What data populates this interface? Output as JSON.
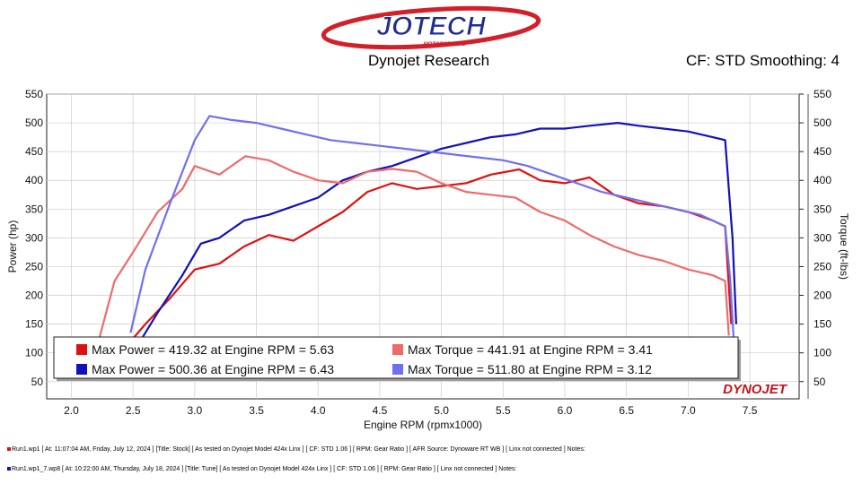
{
  "header": {
    "brand": "JOTECH",
    "brand_sub": "MOTORSPORTS",
    "center_title": "Dynojet Research",
    "right_title": "CF: STD Smoothing: 4",
    "watermark": "DYNOJET"
  },
  "chart_data": {
    "type": "line",
    "xlabel": "Engine RPM (rpmx1000)",
    "ylabel_left": "Power (hp)",
    "ylabel_right": "Torque (ft-lbs)",
    "xlim": [
      1.8,
      7.9
    ],
    "ylim": [
      20,
      550
    ],
    "x_ticks": [
      "2.0",
      "2.5",
      "3.0",
      "3.5",
      "4.0",
      "4.5",
      "5.0",
      "5.5",
      "6.0",
      "6.5",
      "7.0",
      "7.5"
    ],
    "y_ticks": [
      "50",
      "100",
      "150",
      "200",
      "250",
      "300",
      "350",
      "400",
      "450",
      "500",
      "550"
    ],
    "grid": true,
    "legend_position": "bottom-left",
    "series": [
      {
        "name": "Max Power = 419.32 at Engine RPM = 5.63",
        "color": "#dd1111",
        "x": [
          2.4,
          2.6,
          2.8,
          3.0,
          3.2,
          3.4,
          3.6,
          3.8,
          4.0,
          4.2,
          4.4,
          4.6,
          4.8,
          5.0,
          5.2,
          5.4,
          5.63,
          5.8,
          6.0,
          6.2,
          6.4,
          6.6,
          6.8,
          7.0,
          7.2,
          7.3,
          7.32,
          7.35
        ],
        "y": [
          100,
          150,
          195,
          245,
          255,
          285,
          305,
          295,
          320,
          345,
          380,
          395,
          385,
          390,
          395,
          410,
          419,
          400,
          395,
          405,
          375,
          360,
          355,
          345,
          330,
          320,
          250,
          150
        ]
      },
      {
        "name": "Max Power = 500.36 at Engine RPM = 6.43",
        "color": "#1111bb",
        "x": [
          2.5,
          2.7,
          2.9,
          3.05,
          3.2,
          3.4,
          3.6,
          3.8,
          4.0,
          4.2,
          4.4,
          4.6,
          4.8,
          5.0,
          5.2,
          5.4,
          5.6,
          5.8,
          6.0,
          6.2,
          6.43,
          6.6,
          6.8,
          7.0,
          7.2,
          7.3,
          7.36,
          7.39
        ],
        "y": [
          100,
          170,
          235,
          290,
          300,
          330,
          340,
          355,
          370,
          400,
          415,
          425,
          440,
          455,
          465,
          475,
          480,
          490,
          490,
          495,
          500,
          495,
          490,
          485,
          475,
          470,
          300,
          150
        ]
      },
      {
        "name": "Max Torque = 441.91 at Engine RPM = 3.41",
        "color": "#ee6b6b",
        "x": [
          2.22,
          2.35,
          2.5,
          2.7,
          2.9,
          3.0,
          3.2,
          3.41,
          3.6,
          3.8,
          4.0,
          4.2,
          4.4,
          4.6,
          4.8,
          5.0,
          5.2,
          5.4,
          5.6,
          5.8,
          6.0,
          6.2,
          6.4,
          6.6,
          6.8,
          7.0,
          7.2,
          7.3,
          7.33
        ],
        "y": [
          120,
          225,
          275,
          345,
          385,
          425,
          410,
          442,
          435,
          415,
          400,
          395,
          415,
          420,
          415,
          395,
          380,
          375,
          370,
          345,
          330,
          305,
          285,
          270,
          260,
          245,
          235,
          225,
          130
        ]
      },
      {
        "name": "Max Torque = 511.80 at Engine RPM = 3.12",
        "color": "#7070ee",
        "x": [
          2.48,
          2.6,
          2.8,
          3.0,
          3.12,
          3.3,
          3.5,
          3.7,
          3.9,
          4.1,
          4.3,
          4.5,
          4.7,
          4.9,
          5.1,
          5.3,
          5.5,
          5.7,
          5.9,
          6.1,
          6.3,
          6.5,
          6.7,
          6.9,
          7.1,
          7.3,
          7.34,
          7.37
        ],
        "y": [
          135,
          245,
          360,
          470,
          512,
          505,
          500,
          490,
          480,
          470,
          465,
          460,
          455,
          450,
          445,
          440,
          435,
          425,
          410,
          395,
          380,
          370,
          360,
          350,
          340,
          320,
          230,
          120
        ]
      }
    ]
  },
  "run_lines": [
    {
      "color": "#dd1111",
      "text": "Run1.wp1 [ At: 11:07:04 AM, Friday, July 12, 2024 ] [Title: Stock]  [ As tested on Dynojet Model 424x Linx ] [ CF: STD 1.06 ] [ RPM: Gear Ratio ] [ AFR Source: Dynoware RT WB ] [ Linx not connected ] Notes:"
    },
    {
      "color": "#1111bb",
      "text": "Run1.wp1_7.wp8 [ At: 10:22:00 AM, Thursday, July 18, 2024 ] [Title: Tune]  [ As tested on Dynojet Model 424x Linx ] [ CF: STD 1.06 ] [ RPM: Gear Ratio ] [ Linx not connected ] Notes:"
    }
  ]
}
